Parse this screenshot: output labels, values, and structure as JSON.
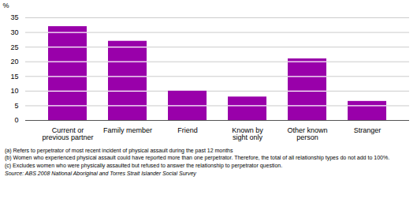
{
  "chart_data": {
    "type": "bar",
    "categories": [
      "Current or\nprevious partner",
      "Family member",
      "Friend",
      "Known by\nsight only",
      "Other known\nperson",
      "Stranger"
    ],
    "values": [
      32.0,
      27.0,
      10.0,
      8.0,
      21.0,
      6.5
    ],
    "color": "#9900aa",
    "ylabel": "%",
    "ylim": [
      0,
      35
    ],
    "yticks": [
      0,
      5,
      10,
      15,
      20,
      25,
      30,
      35
    ],
    "grid": true,
    "annotations": [
      "(a) Refers to perpetrator of most recent incident of physical assault during the past 12 months",
      "(b) Women who experienced physical assault could have reported more than one perpetrator. Therefore, the total of all relationship types do not add to 100%.",
      "(c) Excludes women who were physically assaulted but refused to answer the relationship to perpetrator question."
    ],
    "source": "Source: ABS 2008 National Aboriginal and Torres Strait Islander Social Survey"
  }
}
